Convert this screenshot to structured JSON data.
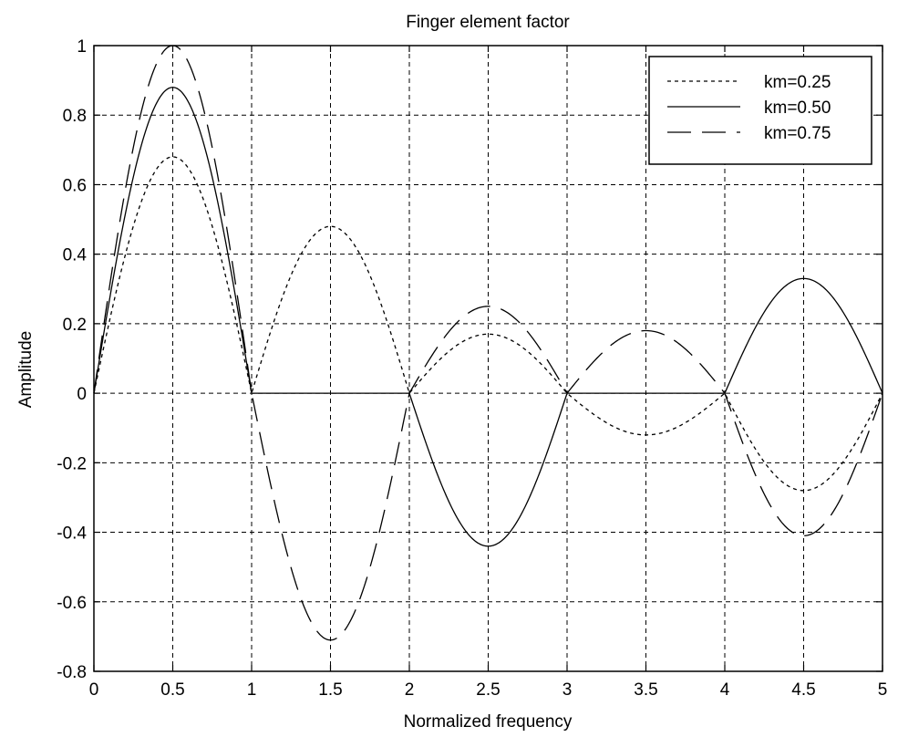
{
  "chart_data": {
    "type": "line",
    "title": "Finger element factor",
    "xlabel": "Normalized frequency",
    "ylabel": "Amplitude",
    "xlim": [
      0,
      5
    ],
    "ylim": [
      -0.8,
      1
    ],
    "xticks": [
      0,
      0.5,
      1,
      1.5,
      2,
      2.5,
      3,
      3.5,
      4,
      4.5,
      5
    ],
    "xtick_labels": [
      "0",
      "0.5",
      "1",
      "1.5",
      "2",
      "2.5",
      "3",
      "3.5",
      "4",
      "4.5",
      "5"
    ],
    "yticks": [
      -0.8,
      -0.6,
      -0.4,
      -0.2,
      0,
      0.2,
      0.4,
      0.6,
      0.8,
      1
    ],
    "ytick_labels": [
      "-0.8",
      "-0.6",
      "-0.4",
      "-0.2",
      "0",
      "0.2",
      "0.4",
      "0.6",
      "0.8",
      "1"
    ],
    "grid": true,
    "legend_position": "top-right",
    "series": [
      {
        "name": "km=0.25",
        "line_style": "dotted",
        "color": "#000000",
        "x": [
          0,
          0.25,
          0.5,
          0.75,
          1,
          1.25,
          1.5,
          1.75,
          2,
          2.25,
          2.5,
          2.75,
          3,
          3.25,
          3.5,
          3.75,
          4,
          4.25,
          4.5,
          4.75,
          5
        ],
        "y": [
          0,
          0.48,
          0.68,
          0.48,
          0,
          0.34,
          0.48,
          0.34,
          0,
          0.12,
          0.17,
          0.12,
          0,
          -0.085,
          -0.12,
          -0.085,
          0,
          -0.2,
          -0.28,
          -0.2,
          0
        ]
      },
      {
        "name": "km=0.50",
        "line_style": "solid",
        "color": "#000000",
        "x": [
          0,
          0.25,
          0.5,
          0.75,
          1,
          1.25,
          1.5,
          1.75,
          2,
          2.25,
          2.5,
          2.75,
          3,
          3.25,
          3.5,
          3.75,
          4,
          4.25,
          4.5,
          4.75,
          5
        ],
        "y": [
          0,
          0.62,
          0.88,
          0.62,
          0,
          0,
          0,
          0,
          0,
          -0.31,
          -0.44,
          -0.31,
          0,
          0,
          0,
          0,
          0,
          0.23,
          0.33,
          0.23,
          0
        ]
      },
      {
        "name": "km=0.75",
        "line_style": "dashed",
        "color": "#000000",
        "x": [
          0,
          0.25,
          0.5,
          0.75,
          1,
          1.25,
          1.5,
          1.75,
          2,
          2.25,
          2.5,
          2.75,
          3,
          3.25,
          3.5,
          3.75,
          4,
          4.25,
          4.5,
          4.75,
          5
        ],
        "y": [
          0,
          0.71,
          1.0,
          0.71,
          0,
          -0.5,
          -0.71,
          -0.5,
          0,
          0.18,
          0.25,
          0.18,
          0,
          0.13,
          0.18,
          0.13,
          0,
          -0.29,
          -0.41,
          -0.29,
          0
        ]
      }
    ]
  }
}
